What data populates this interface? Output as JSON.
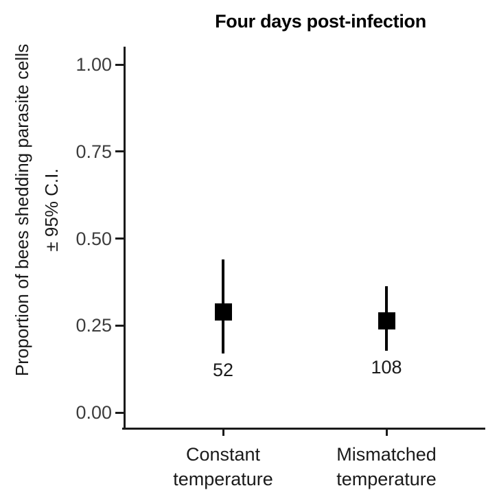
{
  "title": "Four days post-infection",
  "y_axis": {
    "label_line1": "Proportion of bees shedding parasite cells",
    "label_line2": "± 95% C.I.",
    "tick_labels": [
      "1.00",
      "0.75",
      "0.50",
      "0.25",
      "0.00"
    ],
    "tick_values": [
      1.0,
      0.75,
      0.5,
      0.25,
      0.0
    ]
  },
  "x_axis": {
    "category_lines": [
      [
        "Constant",
        "temperature"
      ],
      [
        "Mismatched",
        "temperature"
      ]
    ]
  },
  "chart_data": {
    "type": "scatter",
    "title": "Four days post-infection",
    "xlabel": "",
    "ylabel": "Proportion of bees shedding parasite cells ± 95% C.I.",
    "categories": [
      "Constant temperature",
      "Mismatched temperature"
    ],
    "series": [
      {
        "name": "Proportion of bees shedding parasite cells",
        "values": [
          0.288,
          0.264
        ],
        "ci_low": [
          0.17,
          0.178
        ],
        "ci_high": [
          0.44,
          0.363
        ],
        "n": [
          "52",
          "108"
        ]
      }
    ],
    "ylim": [
      0,
      1
    ],
    "y_ticks": [
      0.0,
      0.25,
      0.5,
      0.75,
      1.0
    ],
    "grid": false,
    "legend": false,
    "marker": "filled-square",
    "error_bars": "95% confidence interval",
    "annotations": "sample sizes printed below each error bar"
  },
  "colors": {
    "background": "#ffffff",
    "marker": "#000000",
    "axis": "#1a1a1a",
    "y_tick_label": "#3d3d3d",
    "text": "#1a1a1a"
  }
}
